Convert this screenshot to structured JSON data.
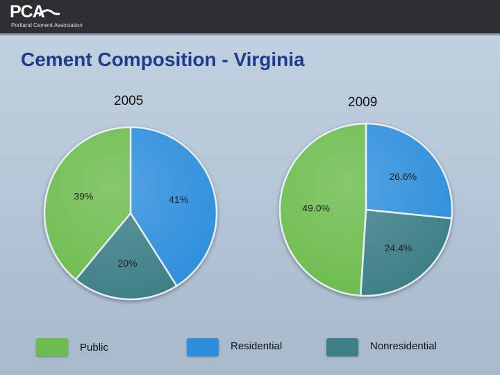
{
  "header": {
    "logo_text": "PCA",
    "logo_subtitle": "Portland Cement Association"
  },
  "slide": {
    "title": "Cement Composition - Virginia"
  },
  "colors": {
    "public": "#6cbc4e",
    "residential": "#2d8fdc",
    "nonresidential": "#3c7f86"
  },
  "chart_data": [
    {
      "type": "pie",
      "title": "2005",
      "slices": [
        {
          "category": "Residential",
          "value": 41,
          "label": "41%"
        },
        {
          "category": "Nonresidential",
          "value": 20,
          "label": "20%"
        },
        {
          "category": "Public",
          "value": 39,
          "label": "39%"
        }
      ]
    },
    {
      "type": "pie",
      "title": "2009",
      "slices": [
        {
          "category": "Residential",
          "value": 26.6,
          "label": "26.6%"
        },
        {
          "category": "Nonresidential",
          "value": 24.4,
          "label": "24.4%"
        },
        {
          "category": "Public",
          "value": 49.0,
          "label": "49.0%"
        }
      ]
    }
  ],
  "legend": [
    {
      "key": "public",
      "label": "Public"
    },
    {
      "key": "residential",
      "label": "Residential"
    },
    {
      "key": "nonresidential",
      "label": "Nonresidential"
    }
  ]
}
